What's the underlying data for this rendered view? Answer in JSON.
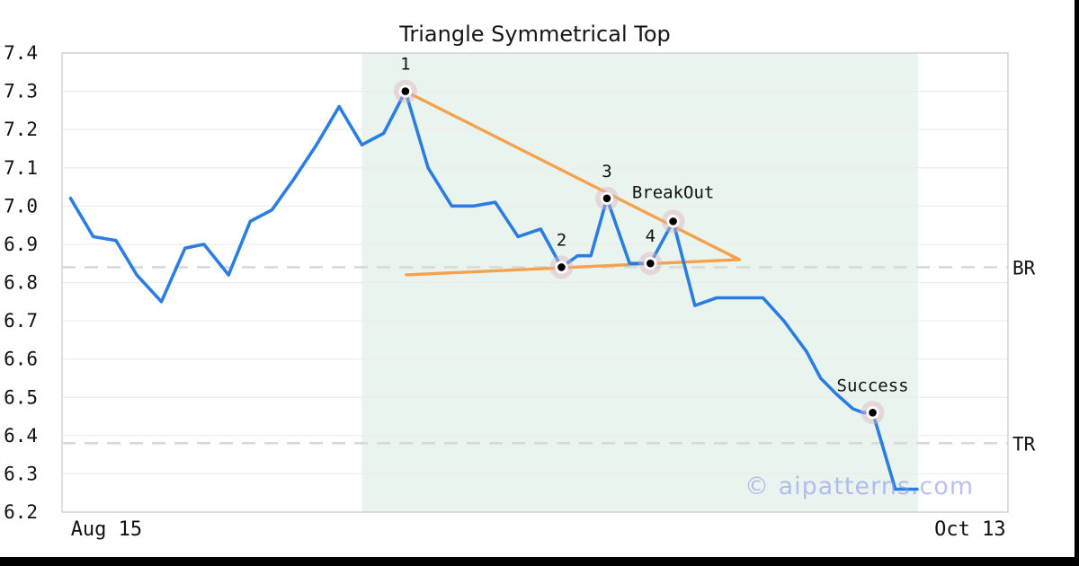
{
  "title": "Triangle Symmetrical Top",
  "watermark": "© aipatterns.com",
  "chart_data": {
    "type": "line",
    "title": "Triangle Symmetrical Top",
    "xlabel": "",
    "ylabel": "",
    "ylim": [
      6.2,
      7.4
    ],
    "grid": "horizontal",
    "legend": "none",
    "y_ticks": [
      7.4,
      7.3,
      7.2,
      7.1,
      7.0,
      6.9,
      6.8,
      6.7,
      6.6,
      6.5,
      6.4,
      6.3,
      6.2
    ],
    "x_ticks": [
      {
        "label": "Aug 15",
        "frac": 0.047
      },
      {
        "label": "Oct 13",
        "frac": 0.96
      }
    ],
    "shaded_region": {
      "start": 0.317,
      "end": 0.905
    },
    "series": [
      {
        "name": "price",
        "points": [
          [
            0.009,
            7.02
          ],
          [
            0.033,
            6.92
          ],
          [
            0.057,
            6.91
          ],
          [
            0.079,
            6.82
          ],
          [
            0.105,
            6.75
          ],
          [
            0.13,
            6.89
          ],
          [
            0.15,
            6.9
          ],
          [
            0.176,
            6.82
          ],
          [
            0.199,
            6.96
          ],
          [
            0.222,
            6.99
          ],
          [
            0.245,
            7.07
          ],
          [
            0.269,
            7.16
          ],
          [
            0.293,
            7.26
          ],
          [
            0.317,
            7.16
          ],
          [
            0.34,
            7.19
          ],
          [
            0.363,
            7.3
          ],
          [
            0.387,
            7.1
          ],
          [
            0.412,
            7.0
          ],
          [
            0.435,
            7.0
          ],
          [
            0.458,
            7.01
          ],
          [
            0.482,
            6.92
          ],
          [
            0.506,
            6.94
          ],
          [
            0.528,
            6.84
          ],
          [
            0.545,
            6.87
          ],
          [
            0.559,
            6.87
          ],
          [
            0.576,
            7.02
          ],
          [
            0.6,
            6.85
          ],
          [
            0.622,
            6.85
          ],
          [
            0.646,
            6.96
          ],
          [
            0.669,
            6.74
          ],
          [
            0.692,
            6.76
          ],
          [
            0.741,
            6.76
          ],
          [
            0.763,
            6.7
          ],
          [
            0.787,
            6.62
          ],
          [
            0.802,
            6.55
          ],
          [
            0.818,
            6.51
          ],
          [
            0.836,
            6.47
          ],
          [
            0.847,
            6.46
          ],
          [
            0.857,
            6.46
          ],
          [
            0.881,
            6.26
          ],
          [
            0.904,
            6.26
          ]
        ]
      }
    ],
    "trendlines": [
      {
        "name": "upper-converging-line",
        "points": [
          [
            0.363,
            7.3
          ],
          [
            0.716,
            6.86
          ]
        ]
      },
      {
        "name": "lower-converging-line",
        "points": [
          [
            0.364,
            6.82
          ],
          [
            0.716,
            6.86
          ]
        ]
      }
    ],
    "hlines": [
      {
        "label": "BR",
        "value": 6.84
      },
      {
        "label": "TR",
        "value": 6.38
      }
    ],
    "markers": [
      {
        "label": "1",
        "x": 0.363,
        "value": 7.3,
        "dy": -31
      },
      {
        "label": "2",
        "x": 0.528,
        "value": 6.84,
        "dy": -31
      },
      {
        "label": "3",
        "x": 0.576,
        "value": 7.02,
        "dy": -31
      },
      {
        "label": "4",
        "x": 0.622,
        "value": 6.85,
        "dy": -31
      },
      {
        "label": "BreakOut",
        "x": 0.646,
        "value": 6.96,
        "dy": -33
      },
      {
        "label": "Success",
        "x": 0.857,
        "value": 6.46,
        "dy": -31
      }
    ],
    "colors": {
      "price_line": "#2a7de2",
      "trendline": "#f6a14b",
      "pattern_shading": "#eaf4ef",
      "marker_halo": "#dcb4c2",
      "marker_dot": "#000000",
      "dashed_level": "#d9d9d9",
      "grid": "#ececec",
      "plot_border": "#d3d3d3",
      "watermark": "#8d97ea"
    }
  }
}
